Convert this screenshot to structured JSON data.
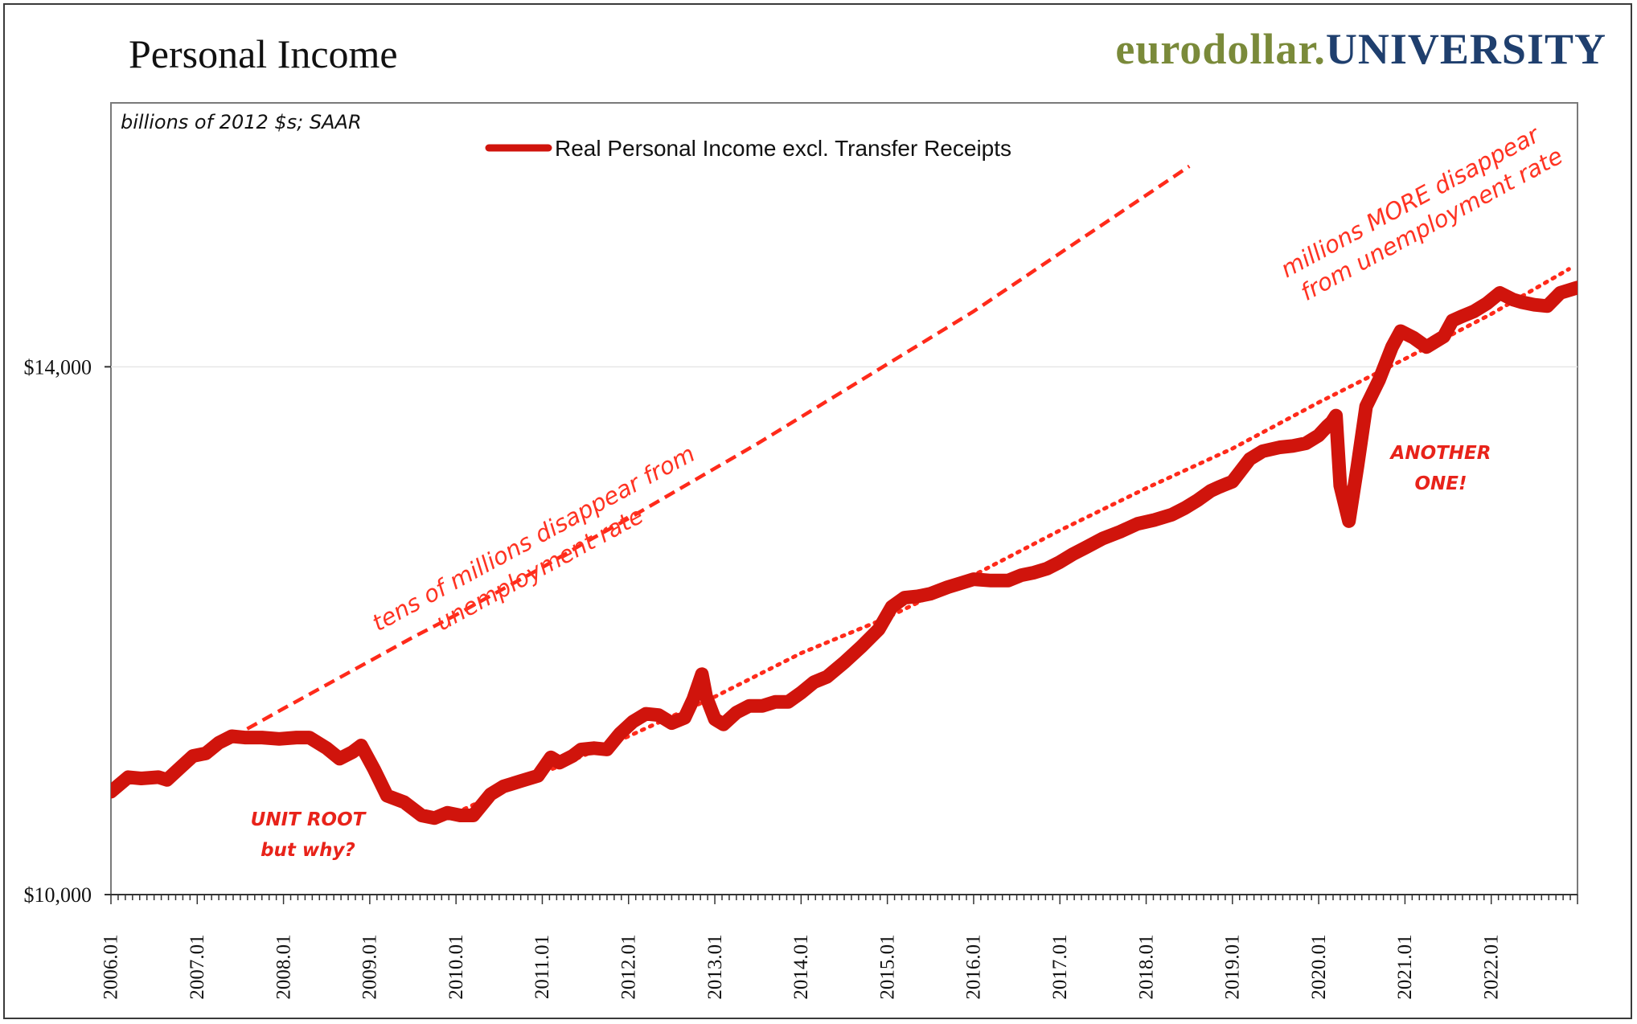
{
  "header": {
    "title": "Personal Income",
    "brand_part1": "eurodollar.",
    "brand_part2": "UNIVERSITY"
  },
  "colors": {
    "series": "#d0140c",
    "trend": "#ff2a1a",
    "annotation": "#e8231a",
    "brand_green": "#7a8a3a",
    "brand_blue": "#1f3f6e"
  },
  "chart_data": {
    "type": "line",
    "units_note": "billions of 2012 $s; SAAR",
    "legend": "Real Personal Income excl. Transfer Receipts",
    "xlim": [
      2006.0,
      2023.0
    ],
    "ylim": [
      10000,
      16000
    ],
    "yticks": [
      {
        "value": 10000,
        "label": "$10,000"
      },
      {
        "value": 14000,
        "label": "$14,000"
      }
    ],
    "xticks": [
      "2006.01",
      "2007.01",
      "2008.01",
      "2009.01",
      "2010.01",
      "2011.01",
      "2012.01",
      "2013.01",
      "2014.01",
      "2015.01",
      "2016.01",
      "2017.01",
      "2018.01",
      "2019.01",
      "2020.01",
      "2021.01",
      "2022.01"
    ],
    "series": [
      {
        "name": "Real Personal Income excl. Transfer Receipts",
        "x": [
          2006.0,
          2006.2,
          2006.35,
          2006.55,
          2006.65,
          2006.8,
          2006.95,
          2007.1,
          2007.25,
          2007.4,
          2007.55,
          2007.75,
          2007.95,
          2008.15,
          2008.3,
          2008.5,
          2008.65,
          2008.8,
          2008.9,
          2009.05,
          2009.2,
          2009.4,
          2009.6,
          2009.75,
          2009.9,
          2010.05,
          2010.2,
          2010.4,
          2010.55,
          2010.75,
          2010.95,
          2011.1,
          2011.2,
          2011.35,
          2011.45,
          2011.6,
          2011.75,
          2011.9,
          2012.05,
          2012.2,
          2012.35,
          2012.5,
          2012.65,
          2012.75,
          2012.85,
          2012.9,
          2013.0,
          2013.1,
          2013.25,
          2013.4,
          2013.55,
          2013.7,
          2013.85,
          2014.0,
          2014.15,
          2014.3,
          2014.5,
          2014.7,
          2014.9,
          2015.05,
          2015.2,
          2015.35,
          2015.5,
          2015.7,
          2015.85,
          2016.0,
          2016.2,
          2016.4,
          2016.55,
          2016.7,
          2016.85,
          2017.0,
          2017.15,
          2017.3,
          2017.5,
          2017.7,
          2017.9,
          2018.1,
          2018.3,
          2018.45,
          2018.6,
          2018.75,
          2018.85,
          2019.0,
          2019.2,
          2019.35,
          2019.55,
          2019.7,
          2019.85,
          2020.0,
          2020.1,
          2020.15,
          2020.2,
          2020.25,
          2020.35,
          2020.45,
          2020.55,
          2020.7,
          2020.85,
          2020.95,
          2021.1,
          2021.25,
          2021.45,
          2021.55,
          2021.65,
          2021.8,
          2021.95,
          2022.1,
          2022.25,
          2022.35,
          2022.5,
          2022.65,
          2022.8,
          2023.0
        ],
        "values": [
          10780,
          10890,
          10880,
          10890,
          10870,
          10960,
          11050,
          11070,
          11150,
          11200,
          11190,
          11190,
          11180,
          11190,
          11190,
          11110,
          11030,
          11080,
          11130,
          10950,
          10750,
          10700,
          10600,
          10580,
          10620,
          10600,
          10600,
          10760,
          10820,
          10860,
          10900,
          11040,
          11000,
          11050,
          11100,
          11110,
          11100,
          11220,
          11310,
          11370,
          11360,
          11300,
          11340,
          11480,
          11670,
          11500,
          11330,
          11290,
          11380,
          11430,
          11430,
          11460,
          11460,
          11530,
          11610,
          11650,
          11760,
          11880,
          12010,
          12180,
          12250,
          12260,
          12280,
          12330,
          12360,
          12390,
          12380,
          12380,
          12420,
          12440,
          12470,
          12520,
          12580,
          12630,
          12700,
          12750,
          12810,
          12840,
          12880,
          12930,
          12990,
          13060,
          13090,
          13130,
          13300,
          13360,
          13390,
          13400,
          13420,
          13480,
          13550,
          13580,
          13630,
          13100,
          12830,
          13250,
          13700,
          13900,
          14150,
          14270,
          14220,
          14150,
          14230,
          14350,
          14380,
          14420,
          14480,
          14560,
          14510,
          14490,
          14470,
          14460,
          14560,
          14600
        ]
      },
      {
        "name": "pre-2008 trend (dashed)",
        "x": [
          2007.4,
          2008.0,
          2008.5,
          2009.0,
          2009.5,
          2010.0,
          2010.5,
          2011.0,
          2011.5,
          2012.0,
          2012.5,
          2013.0,
          2013.5,
          2014.0,
          2014.5,
          2015.0,
          2015.5,
          2016.0,
          2016.5,
          2017.0,
          2017.5,
          2018.0,
          2018.5
        ],
        "values": [
          11190,
          11410,
          11590,
          11770,
          11950,
          12120,
          12300,
          12480,
          12670,
          12850,
          13040,
          13230,
          13420,
          13620,
          13820,
          14020,
          14220,
          14420,
          14640,
          14860,
          15080,
          15300,
          15520
        ]
      },
      {
        "name": "post-2009 trend (dotted)",
        "x": [
          2010.0,
          2011.0,
          2012.0,
          2013.0,
          2014.0,
          2015.0,
          2016.0,
          2017.0,
          2018.0,
          2019.0,
          2020.0,
          2021.0,
          2022.0,
          2022.9
        ],
        "values": [
          10620,
          10920,
          11200,
          11500,
          11830,
          12100,
          12420,
          12760,
          13080,
          13380,
          13730,
          14060,
          14400,
          14740
        ]
      }
    ],
    "annotations": [
      {
        "id": "tens",
        "line1": "tens of millions disappear from",
        "line2": "unemployment rate"
      },
      {
        "id": "more",
        "line1": "millions MORE disappear",
        "line2": "from unemployment rate"
      },
      {
        "id": "unitroot",
        "line1": "UNIT ROOT",
        "line2": "but why?"
      },
      {
        "id": "another",
        "line1": "ANOTHER",
        "line2": "ONE!"
      }
    ]
  }
}
